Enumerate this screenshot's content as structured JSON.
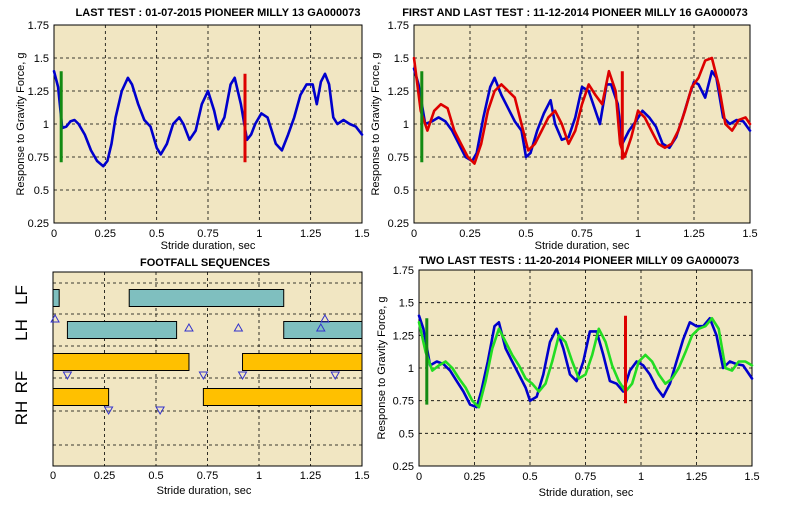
{
  "charts": [
    {
      "title": "LAST TEST : 01-07-2015 PIONEER MILLY 13 GA000073",
      "xlabel": "Stride duration, sec",
      "ylabel": "Response to Gravity Force, g",
      "x_ticks": [
        "0",
        "0.25",
        "0.5",
        "0.75",
        "1",
        "1.25",
        "1.5"
      ],
      "y_ticks": [
        "0.25",
        "0.5",
        "0.75",
        "1",
        "1.25",
        "1.5",
        "1.75"
      ]
    },
    {
      "title": "FIRST AND LAST TEST : 11-12-2014 PIONEER MILLY 16 GA000073",
      "xlabel": "Stride duration, sec",
      "ylabel": "Response to Gravity Force, g",
      "x_ticks": [
        "0",
        "0.25",
        "0.5",
        "0.75",
        "1",
        "1.25",
        "1.5"
      ],
      "y_ticks": [
        "0.25",
        "0.5",
        "0.75",
        "1",
        "1.25",
        "1.5",
        "1.75"
      ]
    },
    {
      "title": "FOOTFALL SEQUENCES",
      "xlabel": "Stride duration, sec",
      "x_ticks": [
        "0",
        "0.25",
        "0.5",
        "0.75",
        "1",
        "1.25",
        "1.5"
      ],
      "y_labels": [
        "LF",
        "LH",
        "RF",
        "RH"
      ]
    },
    {
      "title": "TWO LAST TESTS : 11-20-2014 PIONEER MILLY 09 GA000073",
      "xlabel": "Stride duration, sec",
      "ylabel": "Response to Gravity Force, g",
      "x_ticks": [
        "0",
        "0.25",
        "0.5",
        "0.75",
        "1",
        "1.25",
        "1.5"
      ],
      "y_ticks": [
        "0.25",
        "0.5",
        "0.75",
        "1",
        "1.25",
        "1.5",
        "1.75"
      ]
    }
  ],
  "chart_data": [
    {
      "type": "line",
      "title": "LAST TEST : 01-07-2015 PIONEER MILLY 13 GA000073",
      "xlabel": "Stride duration, sec",
      "ylabel": "Response to Gravity Force, g",
      "xlim": [
        0,
        1.5
      ],
      "ylim": [
        0.25,
        1.75
      ],
      "grid": true,
      "series": [
        {
          "color": "#0000cc",
          "x": [
            0,
            0.02,
            0.04,
            0.06,
            0.08,
            0.1,
            0.12,
            0.15,
            0.18,
            0.21,
            0.24,
            0.26,
            0.28,
            0.3,
            0.33,
            0.36,
            0.38,
            0.41,
            0.44,
            0.47,
            0.5,
            0.52,
            0.55,
            0.58,
            0.61,
            0.63,
            0.66,
            0.69,
            0.72,
            0.75,
            0.78,
            0.8,
            0.83,
            0.86,
            0.88,
            0.91,
            0.94,
            0.96,
            0.98,
            1.01,
            1.04,
            1.06,
            1.08,
            1.11,
            1.14,
            1.17,
            1.2,
            1.23,
            1.26,
            1.28,
            1.3,
            1.32,
            1.34,
            1.36,
            1.38,
            1.41,
            1.44,
            1.47,
            1.5
          ],
          "values": [
            1.4,
            1.28,
            0.97,
            0.98,
            1.02,
            1.03,
            1.0,
            0.92,
            0.8,
            0.72,
            0.68,
            0.72,
            0.85,
            1.05,
            1.25,
            1.35,
            1.3,
            1.15,
            1.03,
            0.98,
            0.82,
            0.77,
            0.85,
            1.0,
            1.05,
            1.0,
            0.88,
            0.95,
            1.15,
            1.25,
            1.1,
            0.96,
            1.05,
            1.3,
            1.35,
            1.15,
            0.88,
            0.92,
            1.0,
            1.08,
            1.05,
            0.95,
            0.85,
            0.8,
            0.92,
            1.05,
            1.22,
            1.3,
            1.3,
            1.15,
            1.32,
            1.38,
            1.3,
            1.05,
            1.0,
            1.03,
            1.0,
            0.98,
            0.92
          ]
        },
        {
          "color": "#138a13",
          "x": [
            0.035,
            0.035
          ],
          "values": [
            0.71,
            1.4
          ]
        },
        {
          "color": "#dd0000",
          "x": [
            0.93,
            0.93
          ],
          "values": [
            0.71,
            1.38
          ]
        }
      ]
    },
    {
      "type": "line",
      "title": "FIRST AND LAST TEST : 11-12-2014 PIONEER MILLY 16 GA000073",
      "xlabel": "Stride duration, sec",
      "ylabel": "Response to Gravity Force, g",
      "xlim": [
        0,
        1.5
      ],
      "ylim": [
        0.25,
        1.75
      ],
      "grid": true,
      "series": [
        {
          "color": "#0000cc",
          "x": [
            0,
            0.02,
            0.05,
            0.08,
            0.11,
            0.14,
            0.17,
            0.2,
            0.23,
            0.26,
            0.28,
            0.31,
            0.34,
            0.36,
            0.39,
            0.42,
            0.45,
            0.48,
            0.5,
            0.52,
            0.55,
            0.58,
            0.61,
            0.63,
            0.66,
            0.69,
            0.72,
            0.75,
            0.78,
            0.8,
            0.83,
            0.86,
            0.88,
            0.91,
            0.93,
            0.96,
            0.99,
            1.02,
            1.05,
            1.08,
            1.11,
            1.14,
            1.17,
            1.2,
            1.23,
            1.25,
            1.27,
            1.3,
            1.33,
            1.35,
            1.38,
            1.41,
            1.44,
            1.47,
            1.5
          ],
          "values": [
            1.42,
            1.3,
            1.0,
            1.02,
            1.05,
            1.02,
            0.95,
            0.85,
            0.75,
            0.72,
            0.78,
            1.05,
            1.28,
            1.35,
            1.22,
            1.12,
            1.02,
            0.95,
            0.75,
            0.78,
            0.95,
            1.08,
            1.18,
            1.0,
            0.88,
            0.9,
            1.05,
            1.28,
            1.25,
            1.15,
            1.0,
            1.3,
            1.3,
            1.15,
            0.85,
            0.95,
            1.02,
            1.1,
            1.05,
            0.98,
            0.85,
            0.82,
            0.9,
            1.05,
            1.22,
            1.32,
            1.3,
            1.2,
            1.4,
            1.35,
            1.05,
            1.0,
            1.03,
            1.02,
            0.95
          ]
        },
        {
          "color": "#dd0000",
          "x": [
            0,
            0.03,
            0.06,
            0.09,
            0.12,
            0.15,
            0.18,
            0.21,
            0.24,
            0.27,
            0.3,
            0.33,
            0.36,
            0.39,
            0.42,
            0.45,
            0.48,
            0.51,
            0.54,
            0.57,
            0.6,
            0.63,
            0.66,
            0.69,
            0.72,
            0.75,
            0.78,
            0.81,
            0.84,
            0.87,
            0.9,
            0.92,
            0.94,
            0.97,
            1.0,
            1.03,
            1.06,
            1.09,
            1.12,
            1.15,
            1.18,
            1.21,
            1.24,
            1.27,
            1.3,
            1.33,
            1.36,
            1.39,
            1.42,
            1.45,
            1.48,
            1.5
          ],
          "values": [
            1.5,
            1.1,
            0.95,
            1.1,
            1.15,
            1.12,
            0.95,
            0.85,
            0.75,
            0.7,
            0.85,
            1.1,
            1.25,
            1.3,
            1.25,
            1.2,
            1.0,
            0.8,
            0.85,
            0.95,
            1.05,
            1.1,
            1.0,
            0.85,
            0.95,
            1.15,
            1.3,
            1.22,
            1.15,
            1.4,
            1.25,
            0.85,
            0.75,
            0.9,
            1.1,
            1.05,
            0.95,
            0.85,
            0.82,
            0.85,
            0.95,
            1.1,
            1.28,
            1.35,
            1.48,
            1.5,
            1.3,
            1.0,
            0.95,
            1.03,
            1.05,
            1.0
          ]
        },
        {
          "color": "#138a13",
          "x": [
            0.035,
            0.035
          ],
          "values": [
            0.71,
            1.4
          ]
        },
        {
          "color": "#dd0000",
          "x": [
            0.93,
            0.93
          ],
          "values": [
            0.73,
            1.4
          ]
        }
      ]
    },
    {
      "type": "bar",
      "title": "FOOTFALL SEQUENCES",
      "xlabel": "Stride duration, sec",
      "xlim": [
        0,
        1.5
      ],
      "grid": true,
      "categories": [
        "LF",
        "LH",
        "RF",
        "RH"
      ],
      "bars": [
        {
          "row": "LF",
          "start": 0.0,
          "end": 0.03,
          "color": "#7fbfbf"
        },
        {
          "row": "LF",
          "start": 0.37,
          "end": 1.12,
          "color": "#7fbfbf"
        },
        {
          "row": "LH",
          "start": 0.07,
          "end": 0.6,
          "color": "#7fbfbf"
        },
        {
          "row": "LH",
          "start": 1.12,
          "end": 1.5,
          "color": "#7fbfbf"
        },
        {
          "row": "RF",
          "start": 0.0,
          "end": 0.66,
          "color": "#ffc000"
        },
        {
          "row": "RF",
          "start": 0.92,
          "end": 1.5,
          "color": "#ffc000"
        },
        {
          "row": "RH",
          "start": 0.0,
          "end": 0.27,
          "color": "#ffc000"
        },
        {
          "row": "RH",
          "start": 0.73,
          "end": 1.5,
          "color": "#ffc000"
        }
      ],
      "markers": [
        {
          "row": "LF",
          "x": 0.01,
          "symbol": "triangle-up"
        },
        {
          "row": "LF",
          "x": 1.32,
          "symbol": "triangle-up"
        },
        {
          "row": "LH",
          "x": 0.66,
          "symbol": "triangle-up"
        },
        {
          "row": "LH",
          "x": 0.9,
          "symbol": "triangle-up"
        },
        {
          "row": "LH",
          "x": 1.3,
          "symbol": "triangle-up"
        },
        {
          "row": "RF",
          "x": 0.07,
          "symbol": "triangle-down"
        },
        {
          "row": "RF",
          "x": 0.73,
          "symbol": "triangle-down"
        },
        {
          "row": "RF",
          "x": 0.92,
          "symbol": "triangle-down"
        },
        {
          "row": "RF",
          "x": 1.37,
          "symbol": "triangle-down"
        },
        {
          "row": "RH",
          "x": 0.27,
          "symbol": "triangle-down"
        },
        {
          "row": "RH",
          "x": 0.52,
          "symbol": "triangle-down"
        }
      ]
    },
    {
      "type": "line",
      "title": "TWO LAST TESTS : 11-20-2014 PIONEER MILLY 09 GA000073",
      "xlabel": "Stride duration, sec",
      "ylabel": "Response to Gravity Force, g",
      "xlim": [
        0,
        1.5
      ],
      "ylim": [
        0.25,
        1.75
      ],
      "grid": true,
      "series": [
        {
          "color": "#0000cc",
          "x": [
            0,
            0.02,
            0.05,
            0.08,
            0.11,
            0.14,
            0.17,
            0.2,
            0.23,
            0.26,
            0.28,
            0.31,
            0.34,
            0.36,
            0.39,
            0.42,
            0.45,
            0.48,
            0.5,
            0.53,
            0.56,
            0.59,
            0.62,
            0.65,
            0.68,
            0.71,
            0.74,
            0.77,
            0.8,
            0.83,
            0.86,
            0.89,
            0.92,
            0.95,
            0.98,
            1.01,
            1.04,
            1.07,
            1.1,
            1.13,
            1.16,
            1.19,
            1.22,
            1.25,
            1.28,
            1.31,
            1.34,
            1.37,
            1.4,
            1.43,
            1.46,
            1.5
          ],
          "values": [
            1.4,
            1.3,
            1.02,
            1.05,
            1.03,
            0.98,
            0.9,
            0.82,
            0.72,
            0.7,
            0.82,
            1.05,
            1.32,
            1.35,
            1.15,
            1.05,
            0.95,
            0.85,
            0.75,
            0.78,
            0.95,
            1.2,
            1.3,
            1.15,
            0.95,
            0.9,
            1.05,
            1.28,
            1.28,
            1.1,
            0.9,
            0.88,
            0.82,
            0.98,
            1.05,
            1.02,
            0.95,
            0.85,
            0.78,
            0.88,
            1.05,
            1.22,
            1.35,
            1.32,
            1.32,
            1.38,
            1.25,
            1.0,
            1.05,
            1.03,
            1.02,
            0.92
          ]
        },
        {
          "color": "#22dd22",
          "x": [
            0,
            0.03,
            0.06,
            0.09,
            0.12,
            0.15,
            0.18,
            0.21,
            0.24,
            0.27,
            0.3,
            0.33,
            0.36,
            0.39,
            0.42,
            0.45,
            0.48,
            0.51,
            0.54,
            0.57,
            0.6,
            0.63,
            0.66,
            0.69,
            0.72,
            0.75,
            0.78,
            0.81,
            0.84,
            0.87,
            0.9,
            0.93,
            0.96,
            0.99,
            1.02,
            1.05,
            1.08,
            1.11,
            1.14,
            1.17,
            1.2,
            1.23,
            1.26,
            1.29,
            1.32,
            1.35,
            1.38,
            1.41,
            1.44,
            1.47,
            1.5
          ],
          "values": [
            1.35,
            1.12,
            0.98,
            1.02,
            1.05,
            1.0,
            0.92,
            0.85,
            0.75,
            0.7,
            0.9,
            1.15,
            1.3,
            1.2,
            1.1,
            1.02,
            0.92,
            0.88,
            0.82,
            0.88,
            1.05,
            1.25,
            1.2,
            1.05,
            0.92,
            0.95,
            1.1,
            1.3,
            1.2,
            1.02,
            0.9,
            0.82,
            0.88,
            1.05,
            1.1,
            1.05,
            0.95,
            0.88,
            0.92,
            1.0,
            1.12,
            1.25,
            1.3,
            1.32,
            1.38,
            1.3,
            1.0,
            0.98,
            1.05,
            1.05,
            1.02
          ]
        },
        {
          "color": "#138a13",
          "x": [
            0.035,
            0.035
          ],
          "values": [
            0.72,
            1.38
          ]
        },
        {
          "color": "#dd0000",
          "x": [
            0.93,
            0.93
          ],
          "values": [
            0.73,
            1.4
          ]
        }
      ]
    }
  ]
}
